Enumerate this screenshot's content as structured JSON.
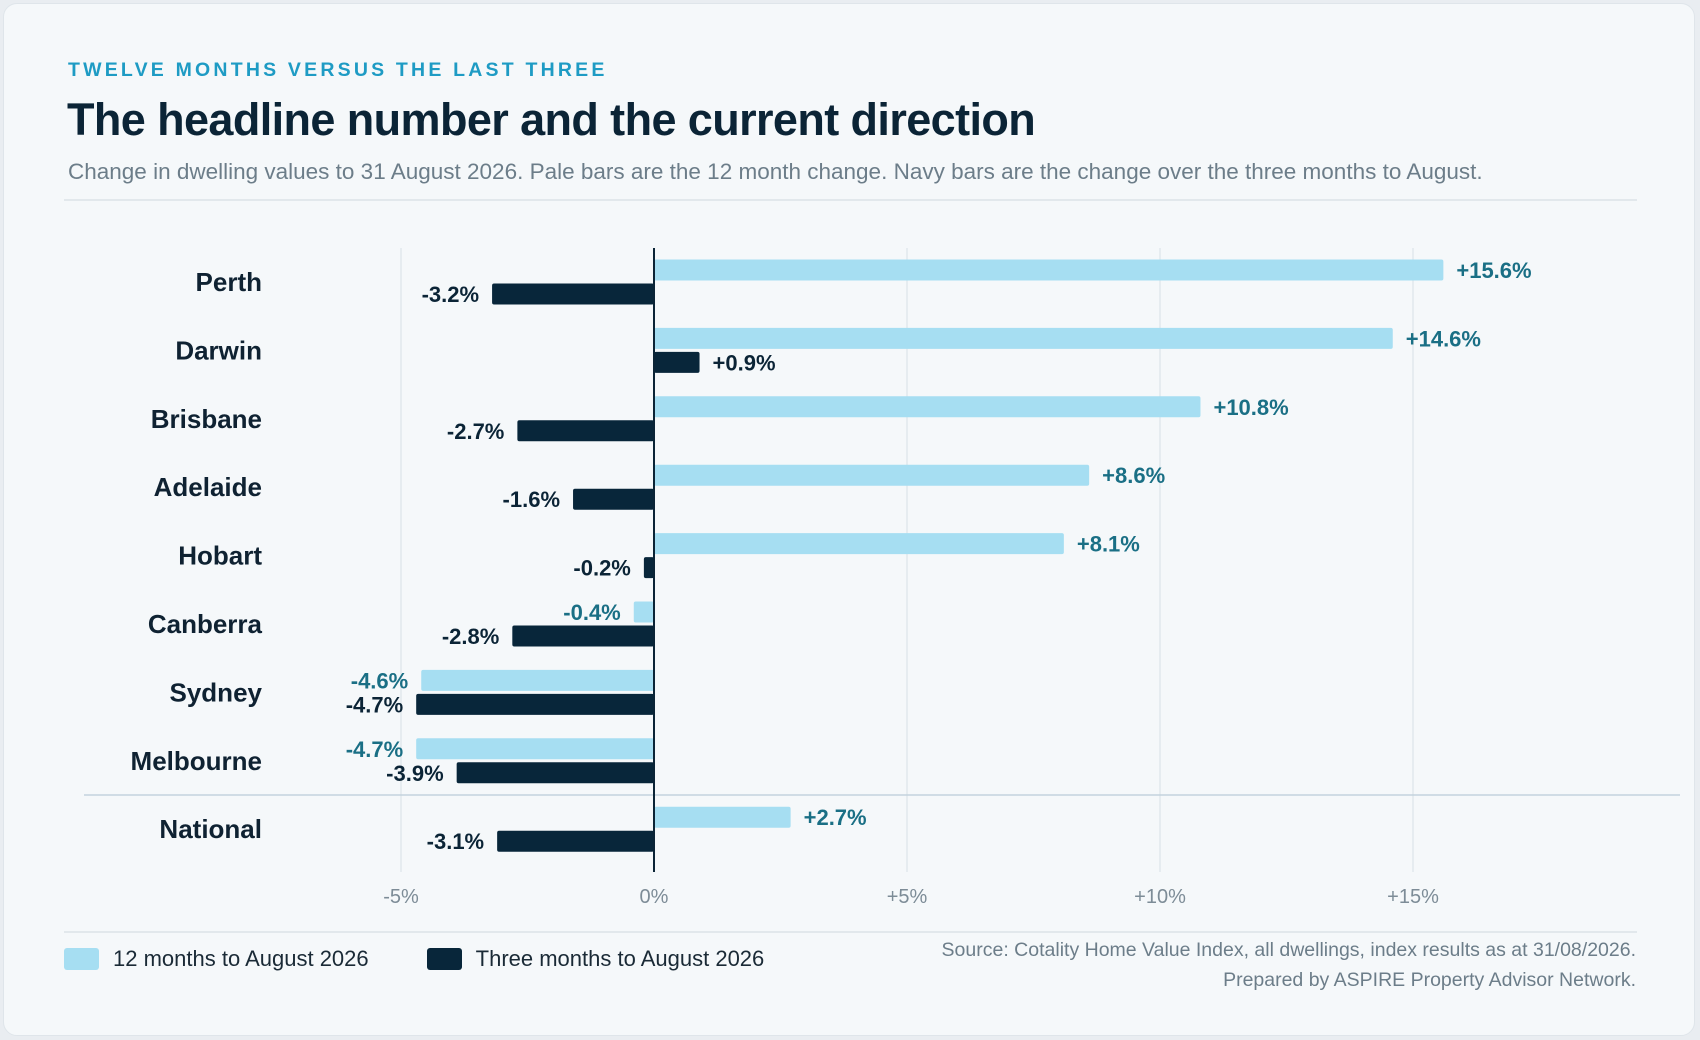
{
  "eyebrow": "TWELVE MONTHS VERSUS THE LAST THREE",
  "title": "The headline number and the current direction",
  "subtitle": "Change in dwelling values to 31 August 2026. Pale bars are the 12 month change. Navy bars are the change over the three months to August.",
  "legend": {
    "series_a": "12 months to August 2026",
    "series_b": "Three months to August 2026"
  },
  "source": {
    "line1": "Source: Cotality Home Value Index, all dwellings, index results as at 31/08/2026.",
    "line2": "Prepared by ASPIRE Property Advisor Network."
  },
  "colors": {
    "pale_bar": "#a6def2",
    "navy_bar": "#08263a",
    "pale_label": "#1a6f85",
    "navy_label": "#0b2436",
    "accent": "#1e9bc4"
  },
  "chart_data": {
    "type": "bar",
    "orientation": "horizontal",
    "categories": [
      "Perth",
      "Darwin",
      "Brisbane",
      "Adelaide",
      "Hobart",
      "Canberra",
      "Sydney",
      "Melbourne",
      "National"
    ],
    "series": [
      {
        "name": "12 months to August 2026",
        "values": [
          15.6,
          14.6,
          10.8,
          8.6,
          8.1,
          -0.4,
          -4.6,
          -4.7,
          2.7
        ],
        "labels": [
          "+15.6%",
          "+14.6%",
          "+10.8%",
          "+8.6%",
          "+8.1%",
          "-0.4%",
          "-4.6%",
          "-4.7%",
          "+2.7%"
        ]
      },
      {
        "name": "Three months to August 2026",
        "values": [
          -3.2,
          0.9,
          -2.7,
          -1.6,
          -0.2,
          -2.8,
          -4.7,
          -3.9,
          -3.1
        ],
        "labels": [
          "-3.2%",
          "+0.9%",
          "-2.7%",
          "-1.6%",
          "-0.2%",
          "-2.8%",
          "-4.7%",
          "-3.9%",
          "-3.1%"
        ]
      }
    ],
    "xticks": [
      -5,
      0,
      5,
      10,
      15
    ],
    "xtick_labels": [
      "-5%",
      "0%",
      "+5%",
      "+10%",
      "+15%"
    ],
    "xlim": [
      -5,
      19
    ],
    "grid": true,
    "legend_position": "bottom-left"
  }
}
